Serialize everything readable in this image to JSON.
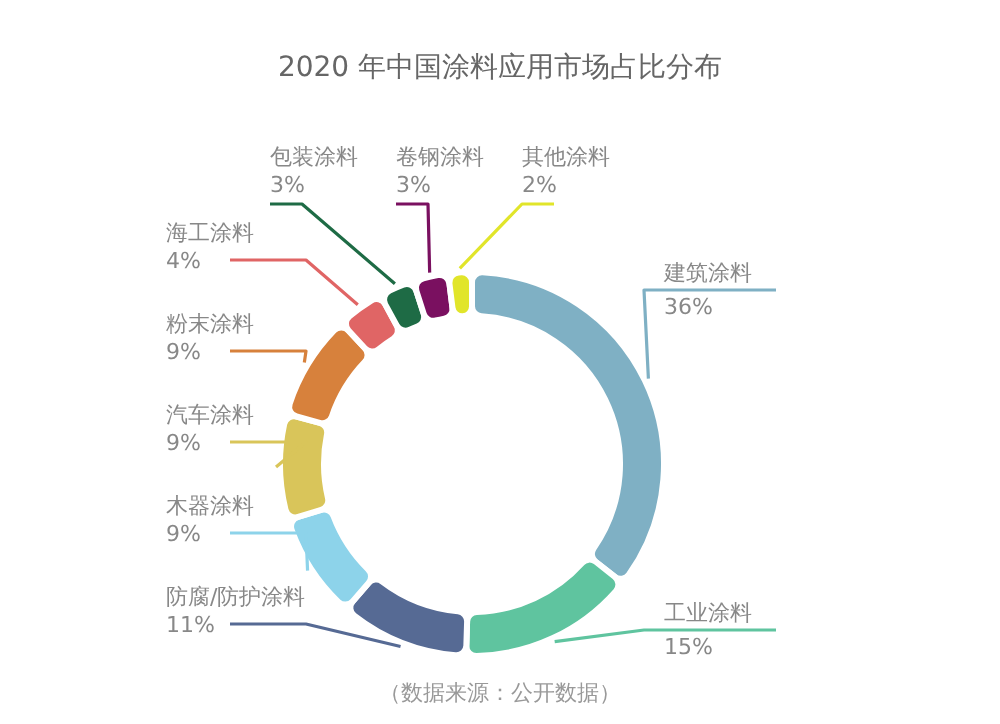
{
  "chart_data": {
    "type": "donut",
    "title": "2020 年中国涂料应用市场占比分布",
    "categories": [
      "建筑涂料",
      "工业涂料",
      "防腐/防护涂料",
      "木器涂料",
      "汽车涂料",
      "粉末涂料",
      "海工涂料",
      "包装涂料",
      "卷钢涂料",
      "其他涂料"
    ],
    "values": [
      36,
      15,
      11,
      9,
      9,
      9,
      4,
      3,
      3,
      2
    ],
    "value_labels": [
      "36%",
      "15%",
      "11%",
      "9%",
      "9%",
      "9%",
      "4%",
      "3%",
      "3%",
      "2%"
    ],
    "colors": [
      "#7fb0c4",
      "#5fc49f",
      "#566a94",
      "#8dd3ea",
      "#d9c55a",
      "#d7813c",
      "#e06565",
      "#1e6b45",
      "#7a1060",
      "#e1e52a"
    ],
    "annotations": [
      "（数据来源：公开数据）"
    ]
  }
}
